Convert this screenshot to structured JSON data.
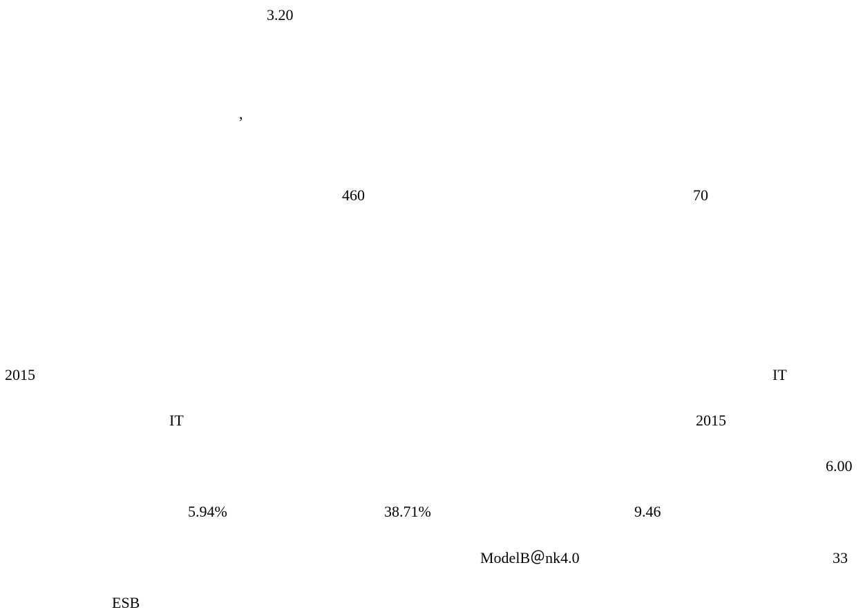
{
  "document": {
    "lines": [
      {
        "fragments": [
          "3.20"
        ]
      },
      {
        "fragments": [
          ","
        ]
      },
      {
        "fragments": [
          "460",
          "70"
        ]
      },
      {
        "fragments": [
          "2015",
          "IT"
        ]
      },
      {
        "fragments": [
          "IT",
          "2015"
        ]
      },
      {
        "fragments": [
          "6.00"
        ]
      },
      {
        "fragments": [
          "5.94%",
          "38.71%",
          "9.46"
        ]
      },
      {
        "fragments": [
          "ModelB＠nk4.0",
          "33"
        ]
      },
      {
        "fragments": [
          "ESB"
        ]
      }
    ]
  }
}
